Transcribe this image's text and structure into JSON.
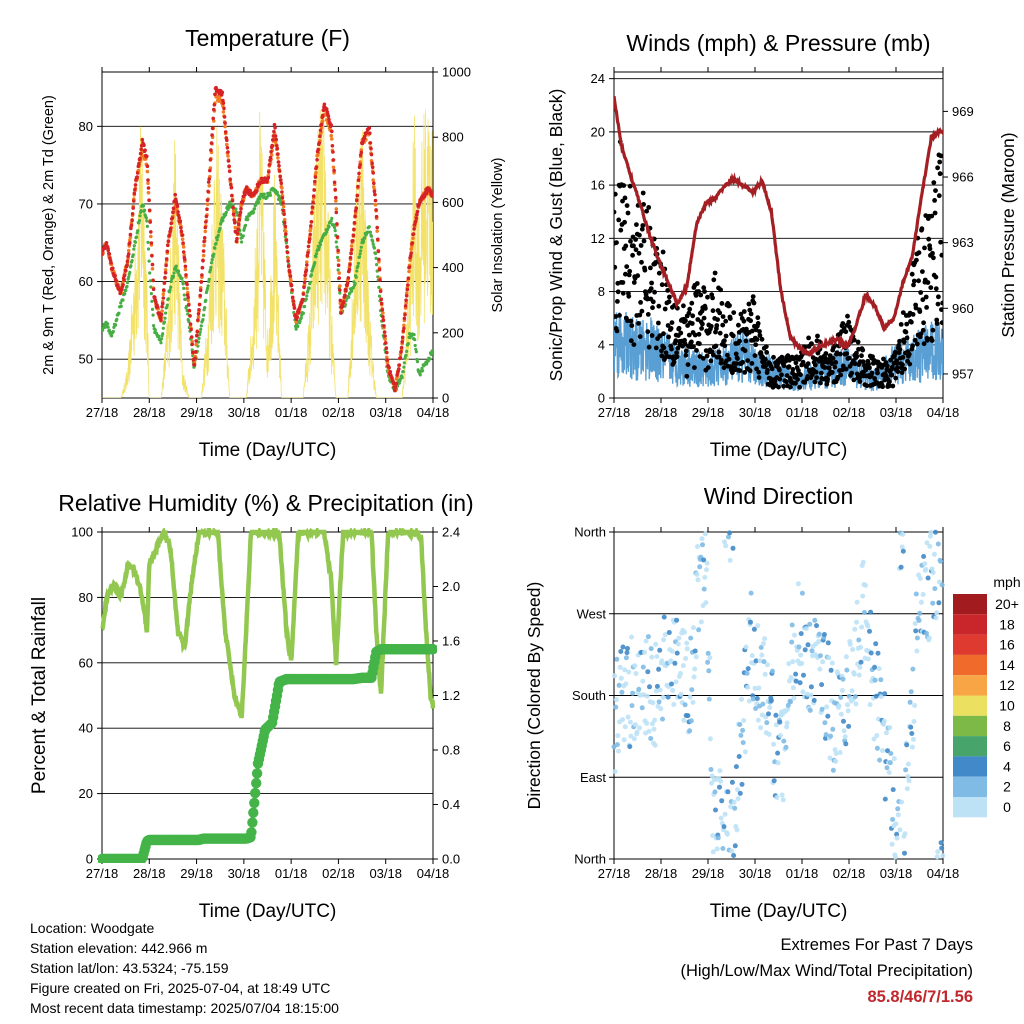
{
  "x_ticks": [
    "27/18",
    "28/18",
    "29/18",
    "30/18",
    "01/18",
    "02/18",
    "03/18",
    "04/18"
  ],
  "colors": {
    "temp2m": "#d62326",
    "temp9m": "#f47b22",
    "dewpoint": "#47ae44",
    "solar": "#f3e26a",
    "wind": "#5a9fd4",
    "gust": "#000000",
    "pressure": "#a31f24",
    "rh": "#92c84f",
    "rain": "#44b449"
  },
  "info": {
    "location": "Location: Woodgate",
    "elevation": "Station elevation: 442.966 m",
    "latlon": "Station lat/lon: 43.5324; -75.159",
    "created": "Figure created on Fri, 2025-07-04, at 18:49 UTC",
    "recent": "Most recent data timestamp: 2025/07/04 18:15:00"
  },
  "extremes": {
    "line1": "Extremes For Past 7 Days",
    "line2": "(High/Low/Max Wind/Total Precipitation)",
    "value": "85.8/46/7/1.56"
  },
  "chart_data": [
    {
      "type": "line",
      "title": "Temperature (F)",
      "xlabel": "Time (Day/UTC)",
      "ylabel": "2m & 9m T (Red, Orange) & 2m Td (Green)",
      "ylabel_right": "Solar Insolation (Yellow)",
      "ylim": [
        45,
        87
      ],
      "yticks": [
        50,
        60,
        70,
        80
      ],
      "ylim_right": [
        0,
        1000
      ],
      "yticks_right": [
        0,
        200,
        400,
        600,
        800,
        1000
      ],
      "x": [
        0,
        0.1,
        0.2,
        0.3,
        0.4,
        0.55,
        0.7,
        0.85,
        0.95,
        1.0,
        1.1,
        1.25,
        1.4,
        1.55,
        1.7,
        1.85,
        1.95,
        2.1,
        2.25,
        2.4,
        2.55,
        2.7,
        2.85,
        2.95,
        3.05,
        3.2,
        3.35,
        3.5,
        3.65,
        3.8,
        3.95,
        4.1,
        4.25,
        4.4,
        4.55,
        4.7,
        4.85,
        4.95,
        5.05,
        5.2,
        5.35,
        5.5,
        5.65,
        5.8,
        5.9,
        6.05,
        6.2,
        6.35,
        6.5,
        6.6,
        6.7,
        6.8,
        6.9,
        7.0
      ],
      "series": [
        {
          "name": "2m T",
          "values": [
            63.5,
            65,
            62,
            60,
            58.5,
            63,
            72,
            78,
            76,
            70,
            58,
            55,
            65,
            71,
            66,
            56,
            49,
            60,
            72,
            85,
            84,
            74,
            65,
            70,
            72,
            71,
            73,
            73,
            80,
            72,
            62,
            55,
            58,
            66,
            76,
            83,
            80,
            70,
            56,
            60,
            68,
            78,
            80,
            69,
            58,
            49,
            46,
            52,
            62,
            67,
            70,
            71,
            72,
            71
          ]
        },
        {
          "name": "9m T",
          "values": [
            63.5,
            65,
            62,
            60,
            58.5,
            63,
            72,
            77,
            75,
            70,
            58,
            55,
            65,
            70,
            66,
            56,
            49,
            60,
            71,
            84,
            83,
            74,
            65,
            70,
            72,
            71,
            73,
            73,
            79,
            72,
            62,
            55,
            58,
            66,
            76,
            82,
            79,
            70,
            56,
            60,
            68,
            78,
            79,
            69,
            58,
            49,
            46,
            52,
            62,
            67,
            70,
            71,
            72,
            71
          ]
        },
        {
          "name": "2m Td",
          "values": [
            54,
            54.5,
            53,
            55,
            57,
            60,
            65,
            70,
            68,
            62,
            54,
            52,
            58,
            62,
            60,
            54,
            49,
            54,
            60,
            65,
            68,
            70,
            69,
            65,
            68,
            69,
            71,
            71,
            72,
            70,
            62,
            54,
            56,
            60,
            64,
            66,
            68,
            66,
            56,
            58,
            60,
            65,
            67,
            63,
            56,
            48,
            46,
            48,
            53,
            53,
            48,
            49,
            50,
            51
          ]
        },
        {
          "name": "Solar",
          "values": [
            0,
            0,
            0,
            0,
            0,
            100,
            500,
            950,
            400,
            0,
            0,
            0,
            300,
            850,
            100,
            0,
            0,
            0,
            300,
            900,
            600,
            0,
            0,
            0,
            0,
            300,
            950,
            200,
            700,
            0,
            0,
            0,
            0,
            300,
            850,
            950,
            300,
            0,
            0,
            0,
            600,
            950,
            300,
            0,
            0,
            0,
            0,
            0,
            400,
            900,
            600,
            900,
            950,
            800
          ]
        }
      ]
    },
    {
      "type": "scatter",
      "title": "Winds (mph) & Pressure (mb)",
      "xlabel": "Time (Day/UTC)",
      "ylabel": "Sonic/Prop Wind & Gust (Blue, Black)",
      "ylabel_right": "Station Pressure (Maroon)",
      "ylim": [
        0,
        24.5
      ],
      "yticks": [
        0,
        4,
        8,
        12,
        16,
        20,
        24
      ],
      "ylim_right": [
        955.9,
        970.8
      ],
      "yticks_right": [
        957,
        960,
        963,
        966,
        969
      ],
      "x": [
        0,
        0.15,
        0.35,
        0.55,
        0.75,
        0.95,
        1.15,
        1.35,
        1.55,
        1.75,
        1.95,
        2.15,
        2.35,
        2.55,
        2.75,
        2.95,
        3.15,
        3.35,
        3.55,
        3.75,
        3.95,
        4.15,
        4.35,
        4.55,
        4.75,
        4.95,
        5.15,
        5.35,
        5.55,
        5.75,
        5.95,
        6.15,
        6.35,
        6.55,
        6.75,
        6.95
      ],
      "series": [
        {
          "name": "Sonic/Prop Wind",
          "values": [
            4.5,
            4.2,
            3.8,
            3.5,
            3.8,
            3.2,
            3,
            2.5,
            2.5,
            2.2,
            2,
            2.2,
            2.5,
            2.8,
            3.2,
            2.5,
            2.2,
            2,
            1.8,
            1.5,
            1.2,
            1.5,
            1.8,
            2,
            2.2,
            2.5,
            2,
            1.5,
            1.5,
            1.8,
            2.5,
            2.8,
            3,
            3.2,
            3.5,
            3.8
          ]
        },
        {
          "name": "Gust",
          "values": [
            13,
            12,
            10,
            10,
            9,
            8,
            6,
            5,
            4,
            6,
            5,
            6,
            5,
            4,
            4,
            5,
            3,
            2,
            2,
            2,
            2,
            3,
            3,
            2,
            3,
            4,
            3,
            2,
            2,
            2,
            2,
            4,
            7,
            8,
            10,
            12
          ]
        },
        {
          "name": "Station Pressure",
          "values": [
            969.7,
            967.5,
            966.1,
            964.8,
            963.4,
            962.2,
            961.2,
            960.2,
            961,
            963.8,
            964.8,
            965,
            965.6,
            965.9,
            965.6,
            965.3,
            965.8,
            964.4,
            960.8,
            958.7,
            958.2,
            957.9,
            958.2,
            958.4,
            958.6,
            958.2,
            959.2,
            960.6,
            960.1,
            959.1,
            959.5,
            961.2,
            962.4,
            965.2,
            967.8,
            968.1
          ]
        }
      ]
    },
    {
      "type": "line",
      "title": "Relative Humidity (%) & Precipitation (in)",
      "xlabel": "Time (Day/UTC)",
      "ylabel": "Percent & Total Rainfall",
      "ylim": [
        0,
        100
      ],
      "yticks": [
        0,
        20,
        40,
        60,
        80,
        100
      ],
      "ylim_right": [
        0,
        2.4
      ],
      "yticks_right": [
        0.0,
        0.4,
        0.8,
        1.2,
        1.6,
        2.0,
        2.4
      ],
      "x": [
        0,
        0.1,
        0.25,
        0.4,
        0.55,
        0.7,
        0.85,
        0.95,
        1.0,
        1.15,
        1.3,
        1.45,
        1.6,
        1.75,
        1.9,
        2.05,
        2.15,
        2.3,
        2.45,
        2.6,
        2.8,
        2.95,
        3.05,
        3.15,
        3.3,
        3.45,
        3.6,
        3.75,
        3.9,
        4.0,
        4.15,
        4.3,
        4.5,
        4.7,
        4.85,
        4.95,
        5.1,
        5.3,
        5.5,
        5.7,
        5.8,
        5.9,
        6.05,
        6.25,
        6.45,
        6.6,
        6.75,
        6.85,
        6.95,
        7.0
      ],
      "series": [
        {
          "name": "RH",
          "values": [
            70,
            80,
            84,
            80,
            90,
            88,
            80,
            70,
            90,
            95,
            100,
            95,
            70,
            65,
            85,
            100,
            100,
            100,
            100,
            70,
            50,
            43,
            70,
            100,
            100,
            100,
            100,
            100,
            70,
            60,
            100,
            100,
            100,
            100,
            85,
            60,
            100,
            100,
            100,
            100,
            70,
            50,
            100,
            100,
            100,
            100,
            98,
            70,
            50,
            47
          ]
        },
        {
          "name": "Rain",
          "values": [
            0,
            0,
            0,
            0,
            0,
            0,
            0,
            0.13,
            0.14,
            0.14,
            0.14,
            0.14,
            0.14,
            0.14,
            0.14,
            0.14,
            0.15,
            0.15,
            0.15,
            0.15,
            0.15,
            0.15,
            0.15,
            0.16,
            0.7,
            0.95,
            1.0,
            1.3,
            1.32,
            1.32,
            1.32,
            1.32,
            1.32,
            1.32,
            1.32,
            1.32,
            1.32,
            1.32,
            1.33,
            1.33,
            1.52,
            1.54,
            1.54,
            1.54,
            1.54,
            1.54,
            1.54,
            1.54,
            1.54,
            1.54
          ]
        }
      ]
    },
    {
      "type": "scatter",
      "title": "Wind Direction",
      "xlabel": "Time (Day/UTC)",
      "ylabel": "Direction (Colored By Speed)",
      "yticks": [
        "North",
        "East",
        "South",
        "West",
        "North"
      ],
      "ylim": [
        0,
        360
      ],
      "legend": {
        "title": "mph",
        "labels": [
          "20+",
          "18",
          "16",
          "14",
          "12",
          "10",
          "8",
          "6",
          "4",
          "2",
          "0"
        ],
        "colors": [
          "#a11b1f",
          "#c8262b",
          "#de3a2f",
          "#f06a2b",
          "#f8a546",
          "#ebe05f",
          "#7cb947",
          "#47a56b",
          "#4189c8",
          "#7fbbe4",
          "#bde2f6"
        ]
      },
      "x": [
        0,
        0.1,
        0.2,
        0.3,
        0.4,
        0.5,
        0.6,
        0.75,
        0.9,
        1.05,
        1.2,
        1.4,
        1.6,
        1.8,
        1.95,
        2.1,
        2.3,
        2.5,
        2.7,
        2.9,
        3.1,
        3.3,
        3.5,
        3.7,
        3.9,
        4.1,
        4.3,
        4.5,
        4.7,
        4.9,
        5.1,
        5.3,
        5.5,
        5.7,
        5.9,
        6.1,
        6.3,
        6.5,
        6.7,
        6.9
      ],
      "values": [
        150,
        170,
        185,
        180,
        190,
        185,
        180,
        195,
        175,
        210,
        200,
        220,
        180,
        300,
        330,
        60,
        40,
        20,
        120,
        240,
        200,
        180,
        90,
        160,
        260,
        230,
        200,
        190,
        150,
        180,
        210,
        280,
        200,
        150,
        80,
        0,
        120,
        310,
        300,
        330
      ]
    }
  ]
}
